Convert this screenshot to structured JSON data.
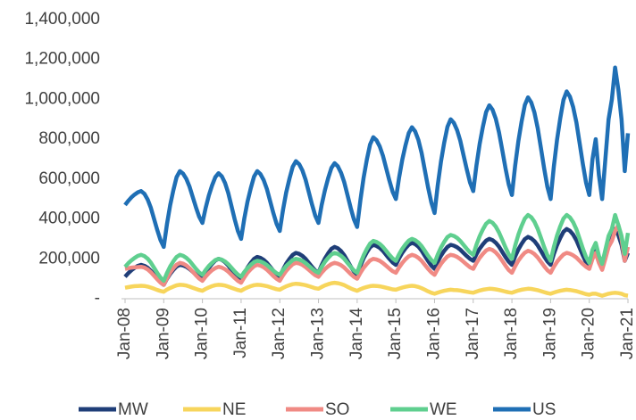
{
  "chart_data": {
    "type": "line",
    "categories": [
      "Jan-08",
      null,
      null,
      null,
      null,
      null,
      null,
      null,
      null,
      null,
      null,
      null,
      "Jan-09",
      null,
      null,
      null,
      null,
      null,
      null,
      null,
      null,
      null,
      null,
      null,
      "Jan-10",
      null,
      null,
      null,
      null,
      null,
      null,
      null,
      null,
      null,
      null,
      null,
      "Jan-11",
      null,
      null,
      null,
      null,
      null,
      null,
      null,
      null,
      null,
      null,
      null,
      "Jan-12",
      null,
      null,
      null,
      null,
      null,
      null,
      null,
      null,
      null,
      null,
      null,
      "Jan-13",
      null,
      null,
      null,
      null,
      null,
      null,
      null,
      null,
      null,
      null,
      null,
      "Jan-14",
      null,
      null,
      null,
      null,
      null,
      null,
      null,
      null,
      null,
      null,
      null,
      "Jan-15",
      null,
      null,
      null,
      null,
      null,
      null,
      null,
      null,
      null,
      null,
      null,
      "Jan-16",
      null,
      null,
      null,
      null,
      null,
      null,
      null,
      null,
      null,
      null,
      null,
      "Jan-17",
      null,
      null,
      null,
      null,
      null,
      null,
      null,
      null,
      null,
      null,
      null,
      "Jan-18",
      null,
      null,
      null,
      null,
      null,
      null,
      null,
      null,
      null,
      null,
      null,
      "Jan-19",
      null,
      null,
      null,
      null,
      null,
      null,
      null,
      null,
      null,
      null,
      null,
      "Jan-20",
      null,
      null,
      null,
      null,
      null,
      null,
      null,
      null,
      null,
      null,
      null,
      "Jan-21"
    ],
    "series": [
      {
        "name": "MW",
        "color": "#1f3e78",
        "values": [
          110000,
          128000,
          143000,
          155000,
          165000,
          170000,
          165000,
          155000,
          140000,
          120000,
          100000,
          82000,
          70000,
          100000,
          125000,
          145000,
          162000,
          170000,
          167000,
          160000,
          149000,
          135000,
          121000,
          108000,
          100000,
          130000,
          155000,
          175000,
          192000,
          200000,
          195000,
          184000,
          167000,
          145000,
          123000,
          103000,
          90000,
          126000,
          156000,
          180000,
          200000,
          210000,
          205000,
          195000,
          180000,
          160000,
          140000,
          122000,
          110000,
          146000,
          176000,
          200000,
          220000,
          230000,
          225000,
          215000,
          200000,
          180000,
          160000,
          142000,
          130000,
          169000,
          202000,
          228000,
          250000,
          260000,
          253000,
          239000,
          218000,
          190000,
          162000,
          137000,
          120000,
          165000,
          203000,
          233000,
          258000,
          270000,
          265000,
          255000,
          240000,
          220000,
          200000,
          182000,
          170000,
          203000,
          231000,
          253000,
          271000,
          280000,
          274000,
          261000,
          241000,
          215000,
          189000,
          166000,
          150000,
          186000,
          216000,
          240000,
          260000,
          270000,
          266000,
          258000,
          246000,
          230000,
          214000,
          200000,
          190000,
          223000,
          251000,
          273000,
          291000,
          300000,
          294000,
          281000,
          261000,
          235000,
          209000,
          186000,
          170000,
          212000,
          247000,
          275000,
          299000,
          310000,
          303000,
          289000,
          268000,
          240000,
          212000,
          187000,
          170000,
          224000,
          269000,
          305000,
          336000,
          350000,
          341000,
          322000,
          293000,
          255000,
          217000,
          183000,
          160000,
          210000,
          240000,
          190000,
          150000,
          210000,
          270000,
          300000,
          350000,
          320000,
          270000,
          190000,
          230000
        ]
      },
      {
        "name": "NE",
        "color": "#f7d55c",
        "values": [
          55000,
          58000,
          61000,
          63000,
          64000,
          65000,
          64000,
          61000,
          56000,
          50000,
          44000,
          39000,
          35000,
          46000,
          54000,
          61000,
          67000,
          70000,
          69000,
          66000,
          61000,
          55000,
          49000,
          44000,
          40000,
          49000,
          57000,
          63000,
          68000,
          70000,
          69000,
          66000,
          61000,
          55000,
          49000,
          44000,
          40000,
          49000,
          57000,
          63000,
          68000,
          70000,
          69000,
          66000,
          63000,
          58000,
          53000,
          48000,
          45000,
          54000,
          62000,
          68000,
          73000,
          75000,
          74000,
          71000,
          68000,
          63000,
          58000,
          53000,
          50000,
          59000,
          67000,
          73000,
          78000,
          80000,
          78000,
          74000,
          68000,
          60000,
          52000,
          45000,
          40000,
          48000,
          54000,
          59000,
          63000,
          65000,
          64000,
          62000,
          59000,
          55000,
          51000,
          47000,
          45000,
          51000,
          56000,
          60000,
          63000,
          65000,
          63000,
          59000,
          53000,
          45000,
          37000,
          30000,
          25000,
          31000,
          36000,
          40000,
          43000,
          45000,
          44000,
          43000,
          41000,
          38000,
          35000,
          32000,
          30000,
          36000,
          41000,
          45000,
          48000,
          50000,
          49000,
          47000,
          44000,
          40000,
          36000,
          32000,
          30000,
          36000,
          41000,
          45000,
          48000,
          50000,
          49000,
          46000,
          43000,
          38000,
          33000,
          28000,
          25000,
          31000,
          36000,
          40000,
          43000,
          45000,
          44000,
          41000,
          38000,
          33000,
          28000,
          23000,
          20000,
          25000,
          25000,
          20000,
          15000,
          20000,
          25000,
          28000,
          30000,
          28000,
          25000,
          18000,
          15000
        ]
      },
      {
        "name": "SO",
        "color": "#f08a84",
        "values": [
          150000,
          153000,
          156000,
          158000,
          159000,
          160000,
          156000,
          147000,
          133000,
          115000,
          97000,
          81000,
          70000,
          103000,
          131000,
          153000,
          171000,
          180000,
          176000,
          167000,
          153000,
          135000,
          117000,
          101000,
          90000,
          111000,
          129000,
          143000,
          154000,
          160000,
          156000,
          148000,
          136000,
          120000,
          104000,
          90000,
          80000,
          107000,
          130000,
          148000,
          163000,
          170000,
          166000,
          158000,
          146000,
          130000,
          114000,
          100000,
          90000,
          117000,
          140000,
          158000,
          173000,
          180000,
          177000,
          170000,
          159000,
          145000,
          131000,
          118000,
          110000,
          131000,
          149000,
          163000,
          174000,
          180000,
          176000,
          168000,
          156000,
          140000,
          124000,
          110000,
          100000,
          130000,
          155000,
          175000,
          192000,
          200000,
          197000,
          190000,
          179000,
          165000,
          151000,
          138000,
          130000,
          157000,
          180000,
          198000,
          213000,
          220000,
          215000,
          205000,
          190000,
          170000,
          150000,
          132000,
          120000,
          150000,
          175000,
          195000,
          212000,
          220000,
          217000,
          210000,
          199000,
          185000,
          171000,
          158000,
          150000,
          180000,
          205000,
          225000,
          242000,
          250000,
          244000,
          232000,
          214000,
          190000,
          166000,
          144000,
          130000,
          163000,
          191000,
          213000,
          231000,
          240000,
          235000,
          224000,
          207000,
          185000,
          163000,
          143000,
          130000,
          160000,
          185000,
          205000,
          222000,
          230000,
          226000,
          218000,
          206000,
          190000,
          174000,
          160000,
          150000,
          200000,
          230000,
          180000,
          145000,
          200000,
          260000,
          290000,
          340000,
          370000,
          300000,
          190000,
          260000
        ]
      },
      {
        "name": "WE",
        "color": "#5fcf8f",
        "values": [
          160000,
          178000,
          193000,
          205000,
          215000,
          220000,
          214000,
          201000,
          181000,
          155000,
          129000,
          106000,
          90000,
          129000,
          162000,
          188000,
          210000,
          220000,
          215000,
          205000,
          190000,
          170000,
          150000,
          132000,
          120000,
          144000,
          164000,
          180000,
          194000,
          200000,
          196000,
          187000,
          173000,
          155000,
          137000,
          121000,
          110000,
          134000,
          154000,
          170000,
          184000,
          190000,
          187000,
          180000,
          169000,
          155000,
          141000,
          128000,
          120000,
          144000,
          164000,
          180000,
          194000,
          200000,
          197000,
          190000,
          179000,
          165000,
          151000,
          138000,
          130000,
          160000,
          185000,
          205000,
          222000,
          230000,
          225000,
          215000,
          200000,
          180000,
          160000,
          142000,
          130000,
          178000,
          218000,
          250000,
          277000,
          290000,
          285000,
          275000,
          260000,
          240000,
          220000,
          202000,
          190000,
          223000,
          251000,
          273000,
          291000,
          300000,
          294000,
          282000,
          264000,
          240000,
          216000,
          194000,
          180000,
          222000,
          257000,
          285000,
          309000,
          320000,
          315000,
          305000,
          290000,
          270000,
          250000,
          232000,
          220000,
          271000,
          314000,
          348000,
          376000,
          390000,
          381000,
          362000,
          333000,
          295000,
          257000,
          223000,
          200000,
          266000,
          321000,
          365000,
          402000,
          420000,
          409000,
          386000,
          351000,
          305000,
          259000,
          218000,
          190000,
          259000,
          317000,
          363000,
          402000,
          420000,
          408000,
          384000,
          348000,
          300000,
          252000,
          209000,
          180000,
          245000,
          280000,
          215000,
          175000,
          245000,
          315000,
          350000,
          420000,
          370000,
          315000,
          225000,
          330000
        ]
      },
      {
        "name": "US",
        "color": "#1f6fb5",
        "values": [
          470000,
          491000,
          509000,
          523000,
          534000,
          540000,
          526000,
          498000,
          456000,
          400000,
          344000,
          294000,
          260000,
          374000,
          469000,
          545000,
          610000,
          640000,
          627000,
          601000,
          562000,
          510000,
          458000,
          411000,
          380000,
          455000,
          518000,
          568000,
          610000,
          630000,
          614000,
          581000,
          531000,
          465000,
          399000,
          340000,
          300000,
          402000,
          487000,
          555000,
          613000,
          640000,
          625000,
          595000,
          550000,
          490000,
          430000,
          376000,
          340000,
          445000,
          533000,
          603000,
          662000,
          690000,
          675000,
          644000,
          597000,
          535000,
          473000,
          417000,
          380000,
          470000,
          545000,
          605000,
          656000,
          680000,
          664000,
          632000,
          584000,
          520000,
          456000,
          398000,
          360000,
          495000,
          608000,
          698000,
          774000,
          810000,
          795000,
          764000,
          717000,
          655000,
          593000,
          537000,
          500000,
          608000,
          698000,
          770000,
          831000,
          860000,
          839000,
          796000,
          731000,
          645000,
          559000,
          482000,
          430000,
          571000,
          689000,
          783000,
          862000,
          900000,
          882000,
          846000,
          792000,
          720000,
          648000,
          583000,
          540000,
          669000,
          777000,
          863000,
          936000,
          970000,
          948000,
          903000,
          835000,
          745000,
          655000,
          574000,
          520000,
          667000,
          790000,
          888000,
          971000,
          1010000,
          985000,
          934000,
          857000,
          755000,
          653000,
          561000,
          500000,
          662000,
          797000,
          905000,
          997000,
          1040000,
          1014000,
          962000,
          884000,
          780000,
          676000,
          582000,
          520000,
          700000,
          800000,
          620000,
          500000,
          700000,
          900000,
          1000000,
          1160000,
          1050000,
          900000,
          640000,
          830000
        ]
      }
    ],
    "ylim": [
      0,
      1400000
    ],
    "yticks": [
      {
        "value": 0,
        "label": "-"
      },
      {
        "value": 200000,
        "label": "200,000"
      },
      {
        "value": 400000,
        "label": "400,000"
      },
      {
        "value": 600000,
        "label": "600,000"
      },
      {
        "value": 800000,
        "label": "800,000"
      },
      {
        "value": 1000000,
        "label": "1,000,000"
      },
      {
        "value": 1200000,
        "label": "1,200,000"
      },
      {
        "value": 1400000,
        "label": "1,400,000"
      }
    ],
    "grid": false,
    "legend": "bottom"
  }
}
